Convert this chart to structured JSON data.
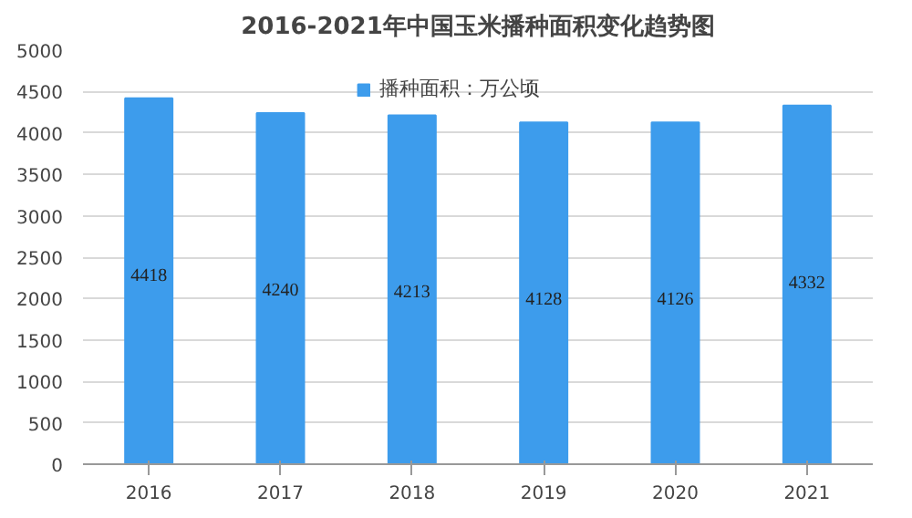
{
  "chart_data": {
    "type": "bar",
    "title": "2016-2021年中国玉米播种面积变化趋势图",
    "categories": [
      "2016",
      "2017",
      "2018",
      "2019",
      "2020",
      "2021"
    ],
    "series": [
      {
        "name": "播种面积：万公顷",
        "color": "#3d9cec",
        "values": [
          4418,
          4240,
          4213,
          4128,
          4126,
          4332
        ]
      }
    ],
    "ylim": [
      0,
      5000
    ],
    "yticks": [
      0,
      500,
      1000,
      1500,
      2000,
      2500,
      3000,
      3500,
      4000,
      4500,
      5000
    ],
    "grid": "y",
    "legend": "top",
    "data_labels": true
  }
}
